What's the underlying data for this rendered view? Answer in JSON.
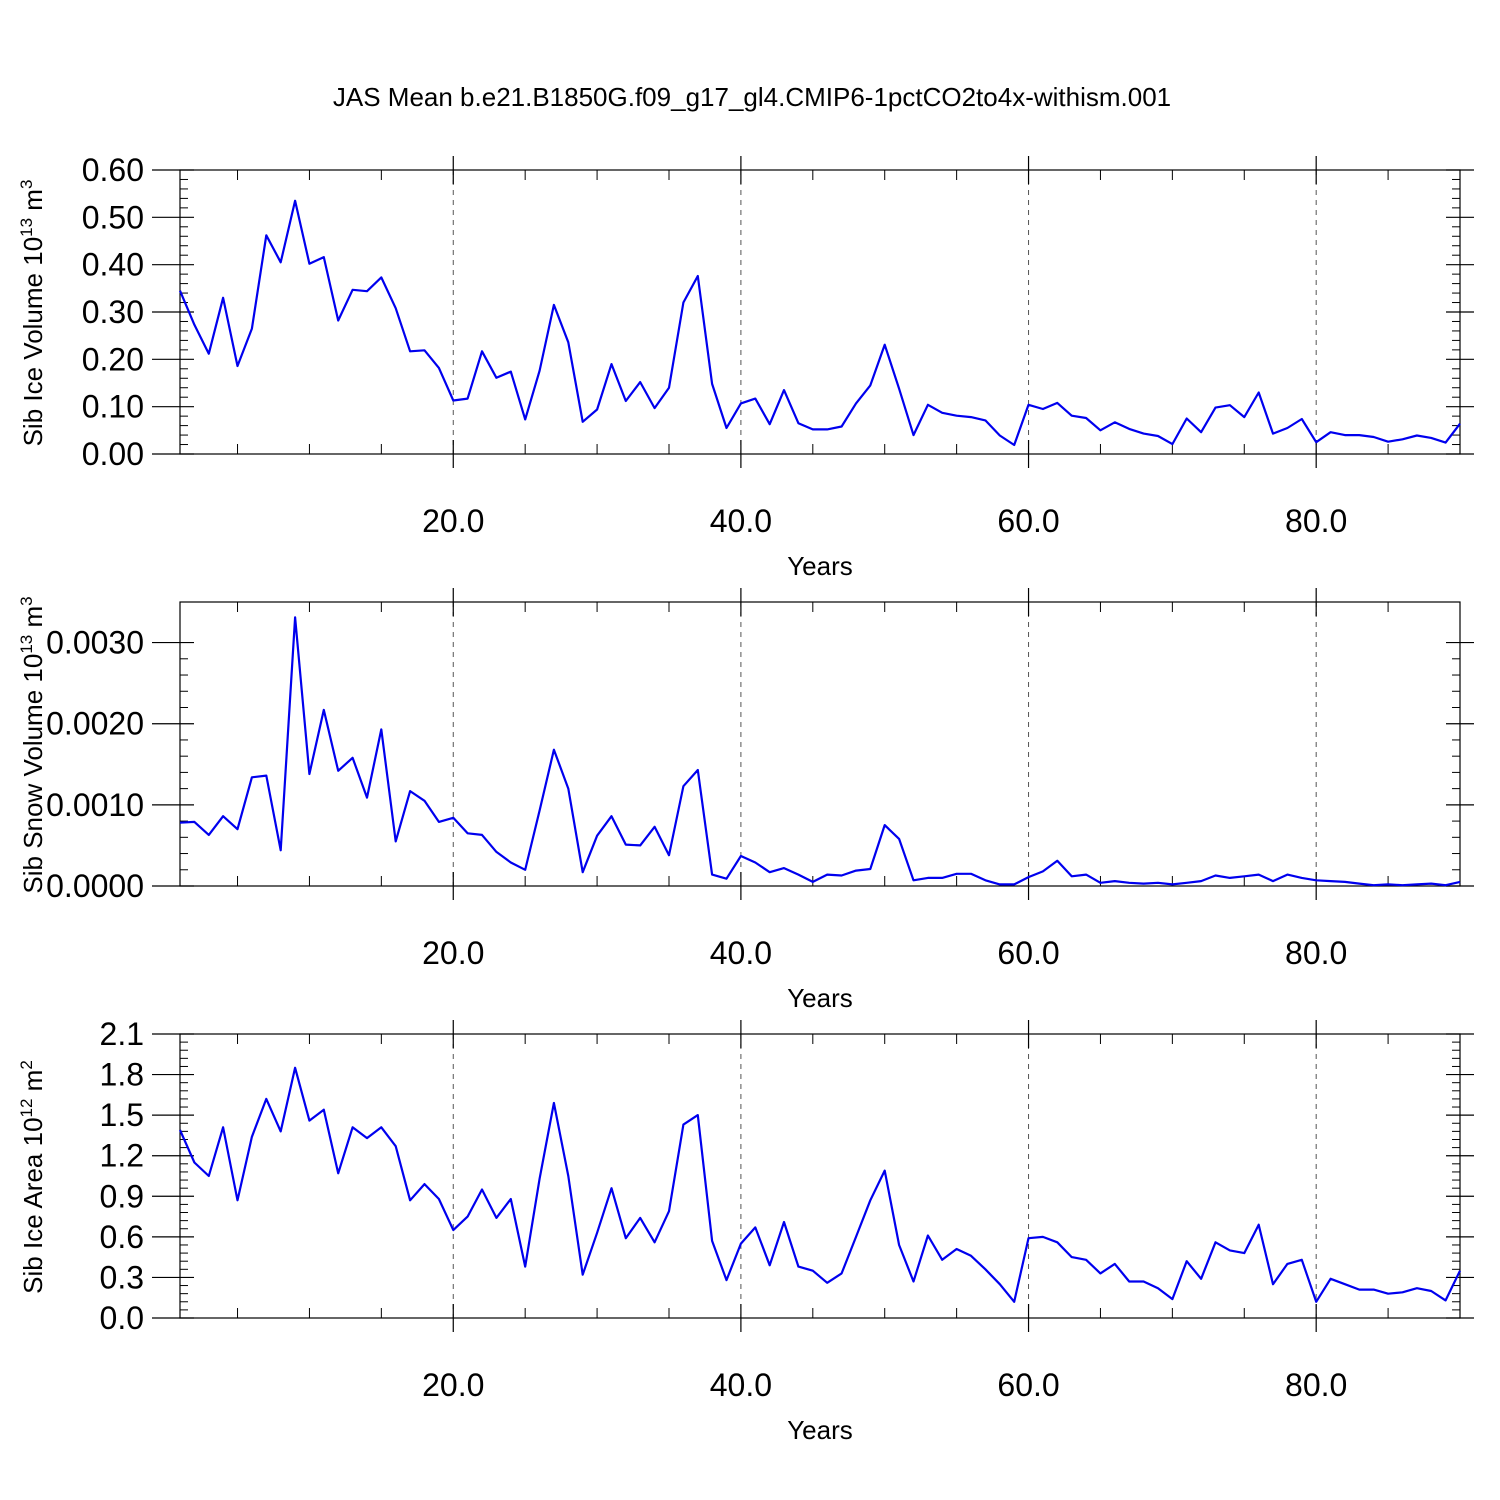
{
  "title": "JAS Mean b.e21.B1850G.f09_g17_gl4.CMIP6-1pctCO2to4x-withism.001",
  "line_color": "#0000ee",
  "chart_data": [
    {
      "type": "line",
      "xlabel": "Years",
      "ylabel": "Sib Ice Volume 10",
      "ylabel_exp": "13",
      "ylabel_unit": " m",
      "ylabel_unit_exp": "3",
      "xlim": [
        1,
        90
      ],
      "ylim": [
        0,
        0.6
      ],
      "xticks": [
        20,
        40,
        60,
        80
      ],
      "xtick_labels": [
        "20.0",
        "40.0",
        "60.0",
        "80.0"
      ],
      "yticks": [
        0,
        0.1,
        0.2,
        0.3,
        0.4,
        0.5,
        0.6
      ],
      "ytick_labels": [
        "0.00",
        "0.10",
        "0.20",
        "0.30",
        "0.40",
        "0.50",
        "0.60"
      ],
      "grid": "dashed vertical",
      "series": [
        {
          "x_start": 1,
          "values": [
            0.345,
            0.273,
            0.212,
            0.33,
            0.186,
            0.265,
            0.462,
            0.405,
            0.535,
            0.402,
            0.416,
            0.282,
            0.347,
            0.344,
            0.373,
            0.308,
            0.217,
            0.219,
            0.182,
            0.113,
            0.117,
            0.217,
            0.161,
            0.174,
            0.073,
            0.176,
            0.315,
            0.236,
            0.068,
            0.094,
            0.19,
            0.112,
            0.152,
            0.097,
            0.14,
            0.32,
            0.376,
            0.148,
            0.055,
            0.107,
            0.117,
            0.063,
            0.135,
            0.065,
            0.052,
            0.052,
            0.058,
            0.107,
            0.145,
            0.231,
            0.138,
            0.04,
            0.104,
            0.087,
            0.081,
            0.078,
            0.071,
            0.039,
            0.019,
            0.104,
            0.095,
            0.108,
            0.081,
            0.076,
            0.05,
            0.067,
            0.053,
            0.043,
            0.038,
            0.021,
            0.075,
            0.046,
            0.098,
            0.103,
            0.078,
            0.13,
            0.043,
            0.055,
            0.074,
            0.025,
            0.046,
            0.04,
            0.04,
            0.036,
            0.026,
            0.031,
            0.039,
            0.034,
            0.024,
            0.064
          ]
        }
      ]
    },
    {
      "type": "line",
      "xlabel": "Years",
      "ylabel": "Sib Snow Volume 10",
      "ylabel_exp": "13",
      "ylabel_unit": " m",
      "ylabel_unit_exp": "3",
      "xlim": [
        1,
        90
      ],
      "ylim": [
        0,
        0.0035
      ],
      "xticks": [
        20,
        40,
        60,
        80
      ],
      "xtick_labels": [
        "20.0",
        "40.0",
        "60.0",
        "80.0"
      ],
      "yticks": [
        0,
        0.001,
        0.002,
        0.003
      ],
      "ytick_labels": [
        "0.0000",
        "0.0010",
        "0.0020",
        "0.0030"
      ],
      "grid": "dashed vertical",
      "series": [
        {
          "x_start": 1,
          "values": [
            0.00078,
            0.00079,
            0.00063,
            0.00086,
            0.0007,
            0.00134,
            0.00136,
            0.00044,
            0.00331,
            0.00138,
            0.00217,
            0.00142,
            0.00158,
            0.00109,
            0.00193,
            0.00055,
            0.00117,
            0.00105,
            0.00079,
            0.00084,
            0.00065,
            0.00063,
            0.00042,
            0.00029,
            0.0002,
            0.00093,
            0.00168,
            0.0012,
            0.00017,
            0.00062,
            0.00086,
            0.00051,
            0.0005,
            0.00073,
            0.00038,
            0.00123,
            0.00143,
            0.00014,
            9e-05,
            0.00037,
            0.00029,
            0.00017,
            0.00022,
            0.00014,
            5e-05,
            0.00014,
            0.00013,
            0.00019,
            0.00021,
            0.00075,
            0.00058,
            7e-05,
            0.0001,
            0.0001,
            0.00015,
            0.00015,
            7e-05,
            2e-05,
            2e-05,
            0.00011,
            0.00018,
            0.00031,
            0.00012,
            0.00014,
            4e-05,
            6e-05,
            4e-05,
            3e-05,
            4e-05,
            2e-05,
            4e-05,
            6e-05,
            0.00013,
            0.0001,
            0.00012,
            0.00014,
            6e-05,
            0.00014,
            0.0001,
            7e-05,
            6e-05,
            5e-05,
            3e-05,
            1e-05,
            2e-05,
            1e-05,
            2e-05,
            3e-05,
            1e-05,
            5e-05
          ]
        }
      ]
    },
    {
      "type": "line",
      "xlabel": "Years",
      "ylabel": "Sib Ice Area 10",
      "ylabel_exp": "12",
      "ylabel_unit": " m",
      "ylabel_unit_exp": "2",
      "xlim": [
        1,
        90
      ],
      "ylim": [
        0,
        2.1
      ],
      "xticks": [
        20,
        40,
        60,
        80
      ],
      "xtick_labels": [
        "20.0",
        "40.0",
        "60.0",
        "80.0"
      ],
      "yticks": [
        0,
        0.3,
        0.6,
        0.9,
        1.2,
        1.5,
        1.8,
        2.1
      ],
      "ytick_labels": [
        "0.0",
        "0.3",
        "0.6",
        "0.9",
        "1.2",
        "1.5",
        "1.8",
        "2.1"
      ],
      "grid": "dashed vertical",
      "series": [
        {
          "x_start": 1,
          "values": [
            1.39,
            1.15,
            1.05,
            1.41,
            0.87,
            1.34,
            1.62,
            1.38,
            1.85,
            1.46,
            1.54,
            1.07,
            1.41,
            1.33,
            1.41,
            1.27,
            0.87,
            0.99,
            0.88,
            0.65,
            0.75,
            0.95,
            0.74,
            0.88,
            0.38,
            1.03,
            1.59,
            1.05,
            0.32,
            0.63,
            0.96,
            0.59,
            0.74,
            0.56,
            0.79,
            1.43,
            1.5,
            0.57,
            0.28,
            0.55,
            0.67,
            0.39,
            0.71,
            0.38,
            0.35,
            0.26,
            0.33,
            0.6,
            0.87,
            1.09,
            0.54,
            0.27,
            0.61,
            0.43,
            0.51,
            0.46,
            0.36,
            0.25,
            0.12,
            0.59,
            0.6,
            0.56,
            0.45,
            0.43,
            0.33,
            0.4,
            0.27,
            0.27,
            0.22,
            0.14,
            0.42,
            0.29,
            0.56,
            0.5,
            0.48,
            0.69,
            0.25,
            0.4,
            0.43,
            0.12,
            0.29,
            0.25,
            0.21,
            0.21,
            0.18,
            0.19,
            0.22,
            0.2,
            0.13,
            0.35
          ]
        }
      ]
    }
  ]
}
